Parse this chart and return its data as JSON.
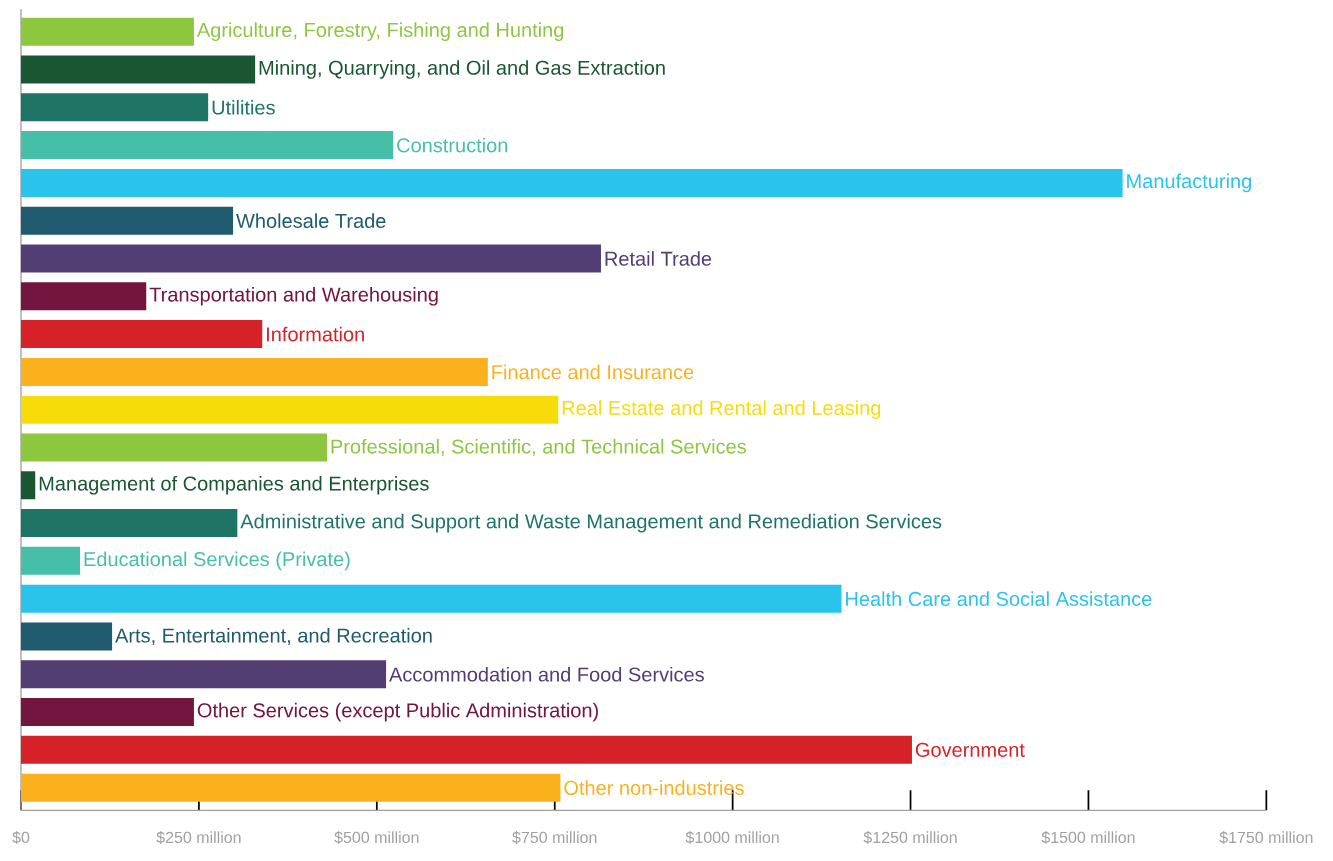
{
  "chart_data": {
    "type": "bar",
    "orientation": "horizontal",
    "tick_labels": "x",
    "categories": [
      "Agriculture, Forestry, Fishing and Hunting",
      "Mining, Quarrying, and Oil and Gas Extraction",
      "Utilities",
      "Construction",
      "Manufacturing",
      "Wholesale Trade",
      "Retail Trade",
      "Transportation and Warehousing",
      "Information",
      "Finance and Insurance",
      "Real Estate and Rental and Leasing",
      "Professional, Scientific, and Technical Services",
      "Management of Companies and Enterprises",
      "Administrative and Support and Waste Management and Remediation Services",
      "Educational Services (Private)",
      "Health Care and Social Assistance",
      "Arts, Entertainment, and Recreation",
      "Accommodation and Food Services",
      "Other Services  (except Public Administration)",
      "Government",
      "Other non-industries"
    ],
    "values": [
      243,
      329,
      263,
      523,
      1548,
      298,
      815,
      176,
      339,
      656,
      755,
      430,
      20,
      304,
      83,
      1153,
      128,
      513,
      243,
      1252,
      758
    ],
    "colors": [
      "#8dc63f",
      "#1a5632",
      "#1e7566",
      "#45bfa8",
      "#29c3ec",
      "#1f5a6e",
      "#523e74",
      "#74153e",
      "#d62129",
      "#fbb11b",
      "#f8dc0a",
      "#8dc63f",
      "#1a5632",
      "#1e7566",
      "#45bfa8",
      "#29c3ec",
      "#1f5a6e",
      "#523e74",
      "#74153e",
      "#d62129",
      "#fbb11b"
    ],
    "xlim": [
      0,
      1750
    ],
    "xticks": [
      {
        "value": 0,
        "label": "$0"
      },
      {
        "value": 250,
        "label": "$250 million"
      },
      {
        "value": 500,
        "label": "$500 million"
      },
      {
        "value": 750,
        "label": "$750 million"
      },
      {
        "value": 1000,
        "label": "$1000 million"
      },
      {
        "value": 1250,
        "label": "$1250 million"
      },
      {
        "value": 1500,
        "label": "$1500 million"
      },
      {
        "value": 1750,
        "label": "$1750 million"
      }
    ]
  }
}
